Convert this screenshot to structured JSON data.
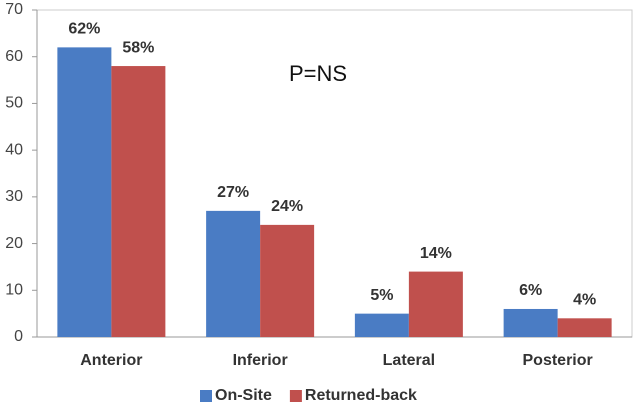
{
  "chart_data": {
    "type": "bar",
    "annotation": "P=NS",
    "categories": [
      "Anterior",
      "Inferior",
      "Lateral",
      "Posterior"
    ],
    "series": [
      {
        "name": "On-Site",
        "color": "#4a7cc4",
        "values": [
          62,
          27,
          5,
          6
        ],
        "value_labels": [
          "62%",
          "27%",
          "5%",
          "6%"
        ]
      },
      {
        "name": "Returned-back",
        "color": "#c0504d",
        "values": [
          58,
          24,
          14,
          4
        ],
        "value_labels": [
          "58%",
          "24%",
          "14%",
          "4%"
        ]
      }
    ],
    "ylim": [
      0,
      70
    ],
    "yticks": [
      0,
      10,
      20,
      30,
      40,
      50,
      60,
      70
    ],
    "legend": "bottom"
  }
}
